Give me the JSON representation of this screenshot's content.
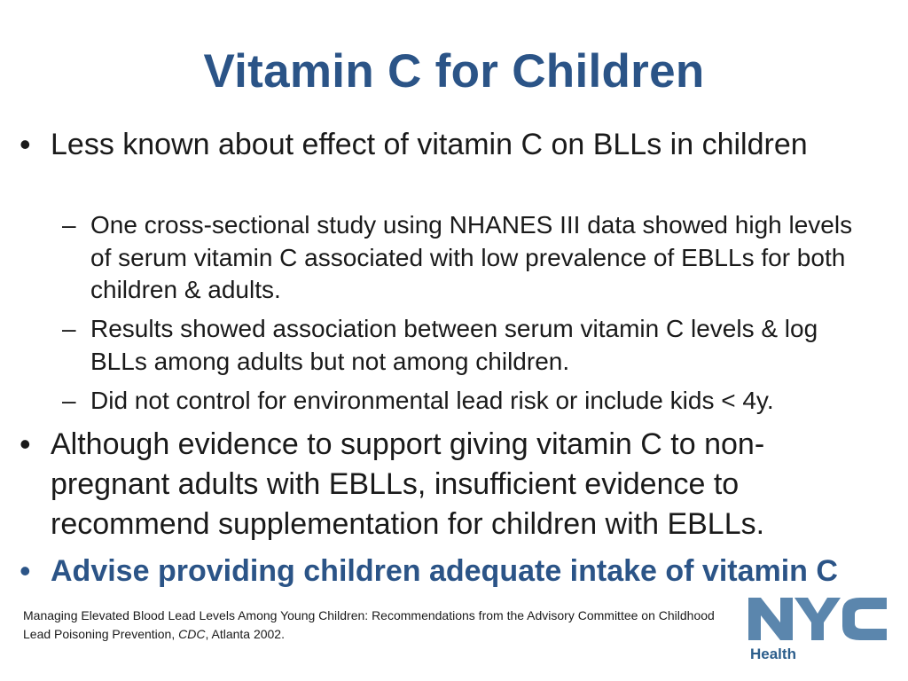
{
  "slide": {
    "title": "Vitamin C for Children",
    "bullets": [
      {
        "text": "Less known about effect of vitamin C on BLLs in children",
        "subs": [
          "One cross-sectional study using NHANES III data showed high levels of serum vitamin C associated with low prevalence of EBLLs for both children & adults.",
          "Results showed association between serum vitamin C levels & log BLLs among adults but not among children.",
          "Did not control for environmental lead risk or include kids < 4y."
        ]
      },
      {
        "text": "Although evidence to support giving vitamin C to non-pregnant adults with EBLLs, insufficient evidence to recommend supplementation for children with EBLLs."
      },
      {
        "text": "Advise providing children adequate intake of vitamin C"
      }
    ],
    "bullet_symbol": "•",
    "sub_symbol": "–",
    "citation": {
      "before": "Managing Elevated Blood Lead Levels Among Young Children: Recommendations from the Advisory Committee on Childhood Lead Poisoning Prevention, ",
      "italic": "CDC",
      "after": ", Atlanta 2002."
    },
    "logo": {
      "mark": "NYC",
      "label": "Health",
      "color": "#5b86ad"
    },
    "accent_color": "#2b5487"
  }
}
